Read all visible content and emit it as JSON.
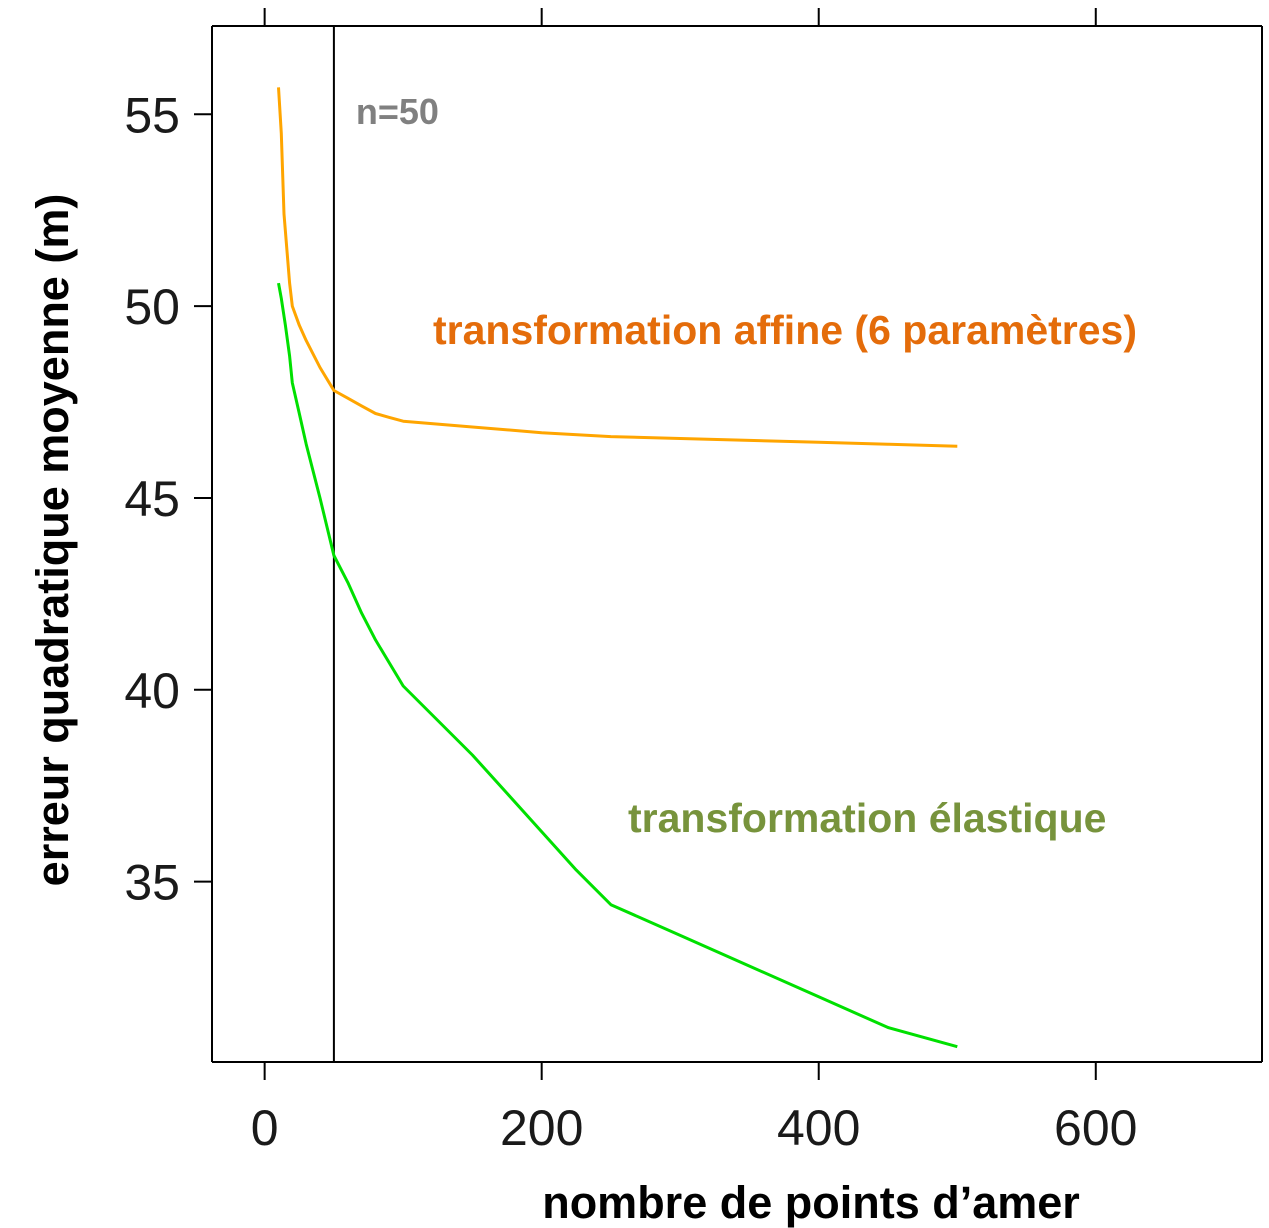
{
  "chart_data": {
    "type": "line",
    "xlabel": "nombre de points d’amer",
    "ylabel": "erreur quadratique moyenne (m)",
    "xlim": [
      -38,
      720
    ],
    "ylim": [
      30.3,
      57.3
    ],
    "x_ticks": [
      0,
      200,
      400,
      600
    ],
    "y_ticks": [
      35,
      40,
      45,
      50,
      55
    ],
    "grid": false,
    "series": [
      {
        "name": "transformation affine (6 paramètres)",
        "color": "#ffa500",
        "label_color": "#e46c0a",
        "x": [
          10,
          12,
          14,
          18,
          20,
          25,
          30,
          40,
          50,
          60,
          70,
          80,
          90,
          100,
          150,
          200,
          250,
          300,
          350,
          400,
          450,
          500
        ],
        "y": [
          55.7,
          54.5,
          52.4,
          50.6,
          50.0,
          49.5,
          49.1,
          48.4,
          47.8,
          47.6,
          47.4,
          47.2,
          47.1,
          47.0,
          46.85,
          46.7,
          46.6,
          46.55,
          46.5,
          46.45,
          46.4,
          46.35
        ]
      },
      {
        "name": "transformation élastique",
        "color": "#00e000",
        "label_color": "#77933c",
        "x": [
          10,
          12,
          15,
          18,
          20,
          25,
          30,
          40,
          50,
          60,
          70,
          80,
          90,
          100,
          125,
          150,
          175,
          200,
          225,
          250,
          300,
          350,
          400,
          450,
          500
        ],
        "y": [
          50.6,
          50.2,
          49.5,
          48.7,
          48.0,
          47.2,
          46.4,
          45.0,
          43.5,
          42.8,
          42.0,
          41.3,
          40.7,
          40.1,
          39.2,
          38.3,
          37.3,
          36.3,
          35.3,
          34.4,
          33.6,
          32.8,
          32.0,
          31.2,
          30.7
        ]
      }
    ],
    "vline": {
      "x": 50,
      "label": "n=50",
      "label_color": "#808080"
    }
  }
}
